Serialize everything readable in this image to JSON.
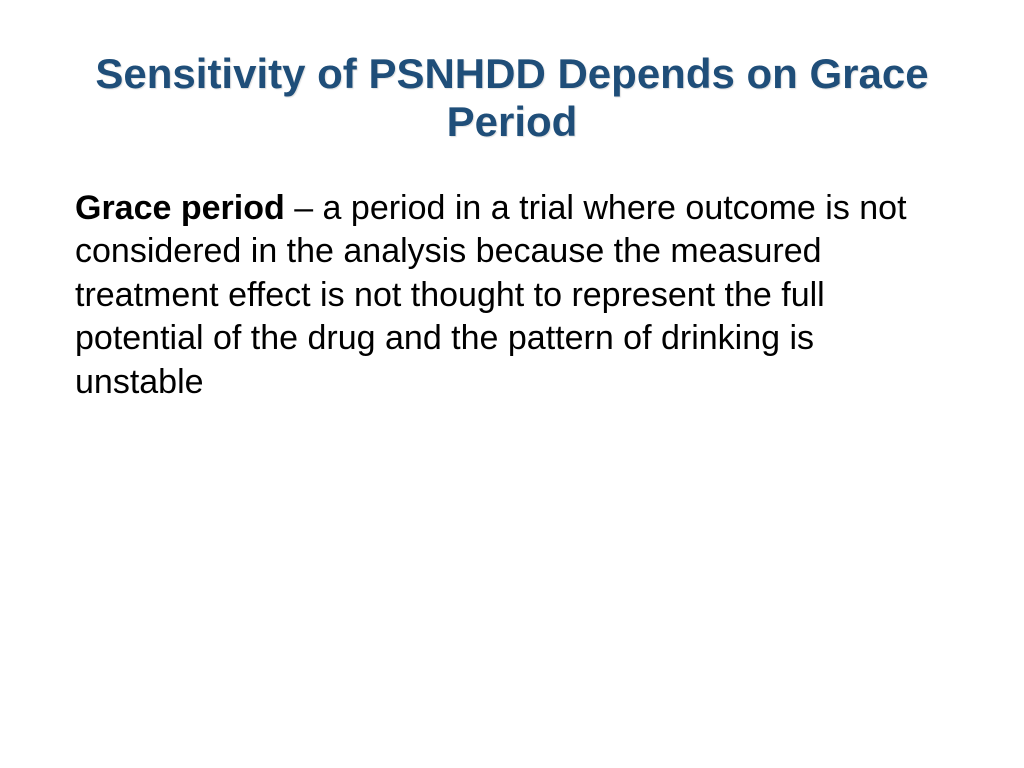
{
  "slide": {
    "title": "Sensitivity of PSNHDD Depends on Grace Period",
    "body_lead": "Grace period",
    "body_rest": " – a period in a trial where outcome is not considered in the analysis because the measured treatment effect is not thought to represent the full potential of the drug and the pattern of drinking is unstable"
  },
  "styling": {
    "title_color": "#1f4e79",
    "title_fontsize": 42,
    "body_fontsize": 34,
    "body_color": "#000000",
    "background_color": "#ffffff",
    "font_family": "Trebuchet MS"
  }
}
